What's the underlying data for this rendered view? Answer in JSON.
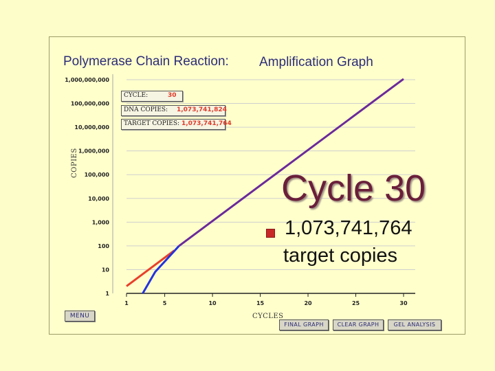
{
  "title": {
    "part1": "Polymerase Chain Reaction:",
    "part2": "Amplification Graph"
  },
  "info": {
    "cycle_label": "CYCLE:",
    "cycle_value": "30",
    "dna_label": "DNA COPIES:",
    "dna_value": "1,073,741,824",
    "target_label": "TARGET COPIES:",
    "target_value": "1,073,741,764"
  },
  "buttons": {
    "menu": "MENU",
    "final_graph": "FINAL GRAPH",
    "clear_graph": "CLEAR GRAPH",
    "gel_analysis": "GEL ANALYSIS"
  },
  "overlay": {
    "heading": "Cycle 30",
    "copies": "1,073,741,764",
    "copies_sub": "target copies"
  },
  "colors": {
    "dna_line": "#e8402a",
    "target_line": "#2233dd",
    "combined_line": "#6a2a9a",
    "title": "#2c2c78",
    "heading": "#6a1f3a"
  },
  "chart_data": {
    "type": "line",
    "title": "Polymerase Chain Reaction: Amplification Graph",
    "xlabel": "CYCLES",
    "ylabel": "COPIES",
    "yscale": "log",
    "xlim": [
      1,
      30
    ],
    "ylim": [
      1,
      1000000000
    ],
    "x_ticks": [
      "1",
      "5",
      "10",
      "15",
      "20",
      "25",
      "30"
    ],
    "x_tick_values": [
      1,
      5,
      10,
      15,
      20,
      25,
      30
    ],
    "y_ticks": [
      "1",
      "10",
      "100",
      "1,000",
      "10,000",
      "100,000",
      "1,000,000",
      "10,000,000",
      "100,000,000",
      "1,000,000,000"
    ],
    "y_tick_values": [
      1,
      10,
      100,
      1000,
      10000,
      100000,
      1000000,
      10000000,
      100000000,
      1000000000
    ],
    "grid": true,
    "series": [
      {
        "name": "DNA COPIES",
        "color": "#e8402a",
        "x": [
          1,
          5,
          6
        ],
        "y": [
          2,
          32,
          64
        ]
      },
      {
        "name": "TARGET COPIES",
        "color": "#2233dd",
        "x": [
          2.7,
          4,
          5,
          6.5
        ],
        "y": [
          1,
          8,
          22,
          100
        ]
      },
      {
        "name": "TARGET COPIES",
        "color": "#6a2a9a",
        "x": [
          6.5,
          30
        ],
        "y": [
          100,
          1073741764
        ]
      }
    ]
  }
}
